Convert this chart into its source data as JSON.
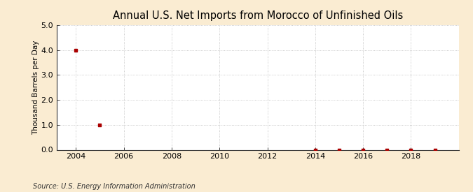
{
  "title": "Annual U.S. Net Imports from Morocco of Unfinished Oils",
  "ylabel": "Thousand Barrels per Day",
  "source": "Source: U.S. Energy Information Administration",
  "background_color": "#faecd2",
  "plot_background_color": "#ffffff",
  "data_points": [
    {
      "year": 2004,
      "value": 4.0
    },
    {
      "year": 2005,
      "value": 1.0
    },
    {
      "year": 2014,
      "value": 0.0
    },
    {
      "year": 2015,
      "value": 0.0
    },
    {
      "year": 2016,
      "value": 0.0
    },
    {
      "year": 2017,
      "value": 0.0
    },
    {
      "year": 2018,
      "value": 0.0
    },
    {
      "year": 2019,
      "value": 0.0
    }
  ],
  "xlim": [
    2003.2,
    2020.0
  ],
  "ylim": [
    0.0,
    5.0
  ],
  "yticks": [
    0.0,
    1.0,
    2.0,
    3.0,
    4.0,
    5.0
  ],
  "xticks": [
    2004,
    2006,
    2008,
    2010,
    2012,
    2014,
    2016,
    2018
  ],
  "marker_color": "#aa0000",
  "marker_size": 3.5,
  "grid_color": "#bbbbbb",
  "grid_linestyle": ":",
  "title_fontsize": 10.5,
  "ylabel_fontsize": 7.5,
  "tick_fontsize": 8,
  "source_fontsize": 7
}
